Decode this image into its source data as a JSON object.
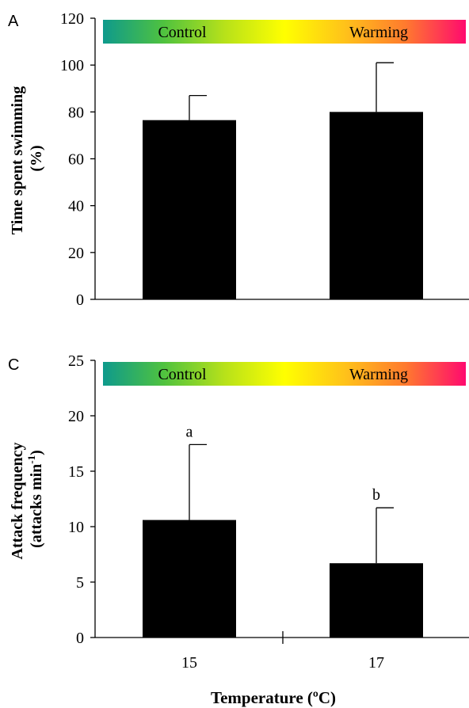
{
  "colors": {
    "bar": "#000000",
    "axis": "#000000",
    "gradient_stops": [
      "#0e9a8c",
      "#4fc23f",
      "#b6e11a",
      "#ffff00",
      "#ffc21a",
      "#ff7a2e",
      "#ff0a6e"
    ]
  },
  "x_axis": {
    "label": "Temperature (ºC)",
    "tick_labels": [
      "15",
      "17"
    ]
  },
  "chart_data": [
    {
      "type": "bar",
      "panel_label": "A",
      "banner": {
        "left_text": "Control",
        "right_text": "Warming"
      },
      "categories": [
        "15",
        "17"
      ],
      "values": [
        76.5,
        80
      ],
      "errors": [
        10.5,
        21
      ],
      "annotations": [],
      "ylabel": {
        "line1": "Time spent swimming",
        "line2": "(%)"
      },
      "ylim": [
        0,
        120
      ],
      "yticks": [
        "0",
        "20",
        "40",
        "60",
        "80",
        "100",
        "120"
      ],
      "grid": false
    },
    {
      "type": "bar",
      "panel_label": "C",
      "banner": {
        "left_text": "Control",
        "right_text": "Warming"
      },
      "categories": [
        "15",
        "17"
      ],
      "values": [
        10.6,
        6.7
      ],
      "errors": [
        6.8,
        5
      ],
      "annotations": [
        "a",
        "b"
      ],
      "ylabel": {
        "line1": "Attack frequency",
        "line2": "(attacks min",
        "line2_sup": "-1",
        "line2_end": ")"
      },
      "ylim": [
        0,
        25
      ],
      "yticks": [
        "0",
        "5",
        "10",
        "15",
        "20",
        "25"
      ],
      "grid": false
    }
  ]
}
